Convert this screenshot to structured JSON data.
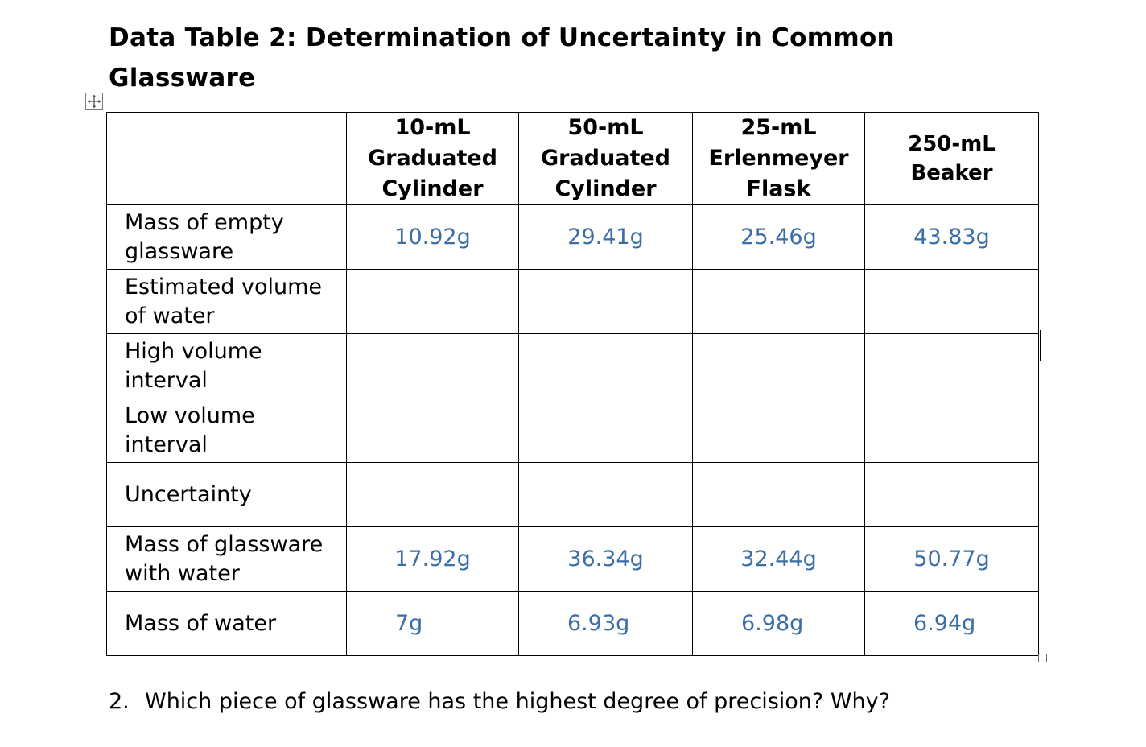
{
  "title": "Data Table 2: Determination of Uncertainty in Common Glassware",
  "table": {
    "headers": [
      "",
      "10-mL\nGraduated\nCylinder",
      "50-mL\nGraduated\nCylinder",
      "25-mL\nErlenmeyer\nFlask",
      "250-mL\nBeaker"
    ],
    "rows": [
      {
        "label": "Mass of empty\nglassware",
        "values": [
          "10.92g",
          "29.41g",
          "25.46g",
          "43.83g"
        ]
      },
      {
        "label": "Estimated volume\nof water",
        "values": [
          "",
          "",
          "",
          ""
        ]
      },
      {
        "label": "High volume\ninterval",
        "values": [
          "",
          "",
          "",
          ""
        ]
      },
      {
        "label": "Low volume\ninterval",
        "values": [
          "",
          "",
          "",
          ""
        ]
      },
      {
        "label": "Uncertainty",
        "values": [
          "",
          "",
          "",
          ""
        ]
      },
      {
        "label": "Mass of glassware\nwith water",
        "values": [
          "17.92g",
          "36.34g",
          "32.44g",
          "50.77g"
        ]
      },
      {
        "label": "Mass of water",
        "values": [
          "7g",
          "6.93g",
          "6.98g",
          "6.94g"
        ]
      }
    ]
  },
  "question": {
    "number": "2.",
    "text": "Which piece of glassware has the highest degree of precision? Why?"
  },
  "icons": {
    "move_handle": "move-arrows-icon",
    "resize_handle": "table-resize-handle-icon"
  },
  "colors": {
    "value_text": "#3a6ea5",
    "border": "#000000"
  }
}
